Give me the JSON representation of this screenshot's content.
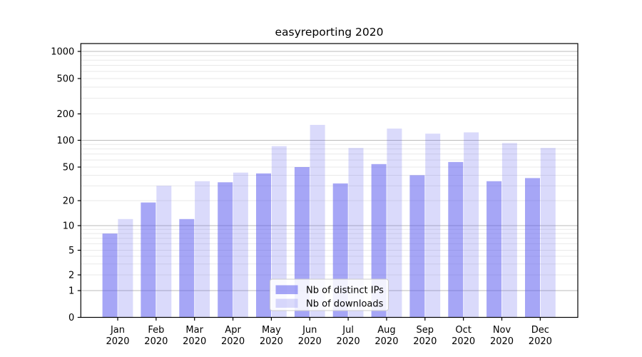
{
  "chart_data": {
    "type": "bar",
    "title": "easyreporting 2020",
    "x_tick_months": [
      "Jan",
      "Feb",
      "Mar",
      "Apr",
      "May",
      "Jun",
      "Jul",
      "Aug",
      "Sep",
      "Oct",
      "Nov",
      "Dec"
    ],
    "x_tick_year": "2020",
    "series": [
      {
        "name": "Nb of distinct IPs",
        "values": [
          8,
          19,
          12,
          33,
          42,
          50,
          32,
          54,
          40,
          57,
          34,
          37
        ],
        "color": "#5555ee",
        "fill_opacity": 0.52
      },
      {
        "name": "Nb of downloads",
        "values": [
          12,
          30,
          34,
          43,
          86,
          150,
          82,
          136,
          119,
          123,
          93,
          82
        ],
        "color": "#5555ee",
        "fill_opacity": 0.22
      }
    ],
    "y_ticks": [
      0,
      1,
      2,
      5,
      10,
      20,
      50,
      100,
      200,
      500,
      1000
    ],
    "y_major_gridlines": [
      1,
      10,
      100,
      1000
    ],
    "y_scale": "symlog",
    "ylim": [
      0,
      1250
    ],
    "grid": "on",
    "legend_position": "inside lower-center",
    "colors": {
      "grid_major": "#bbbbbb",
      "grid_minor": "#e9e9e9",
      "axis": "#000000",
      "legend_border": "#cccccc",
      "legend_bg": "#ffffff"
    }
  }
}
